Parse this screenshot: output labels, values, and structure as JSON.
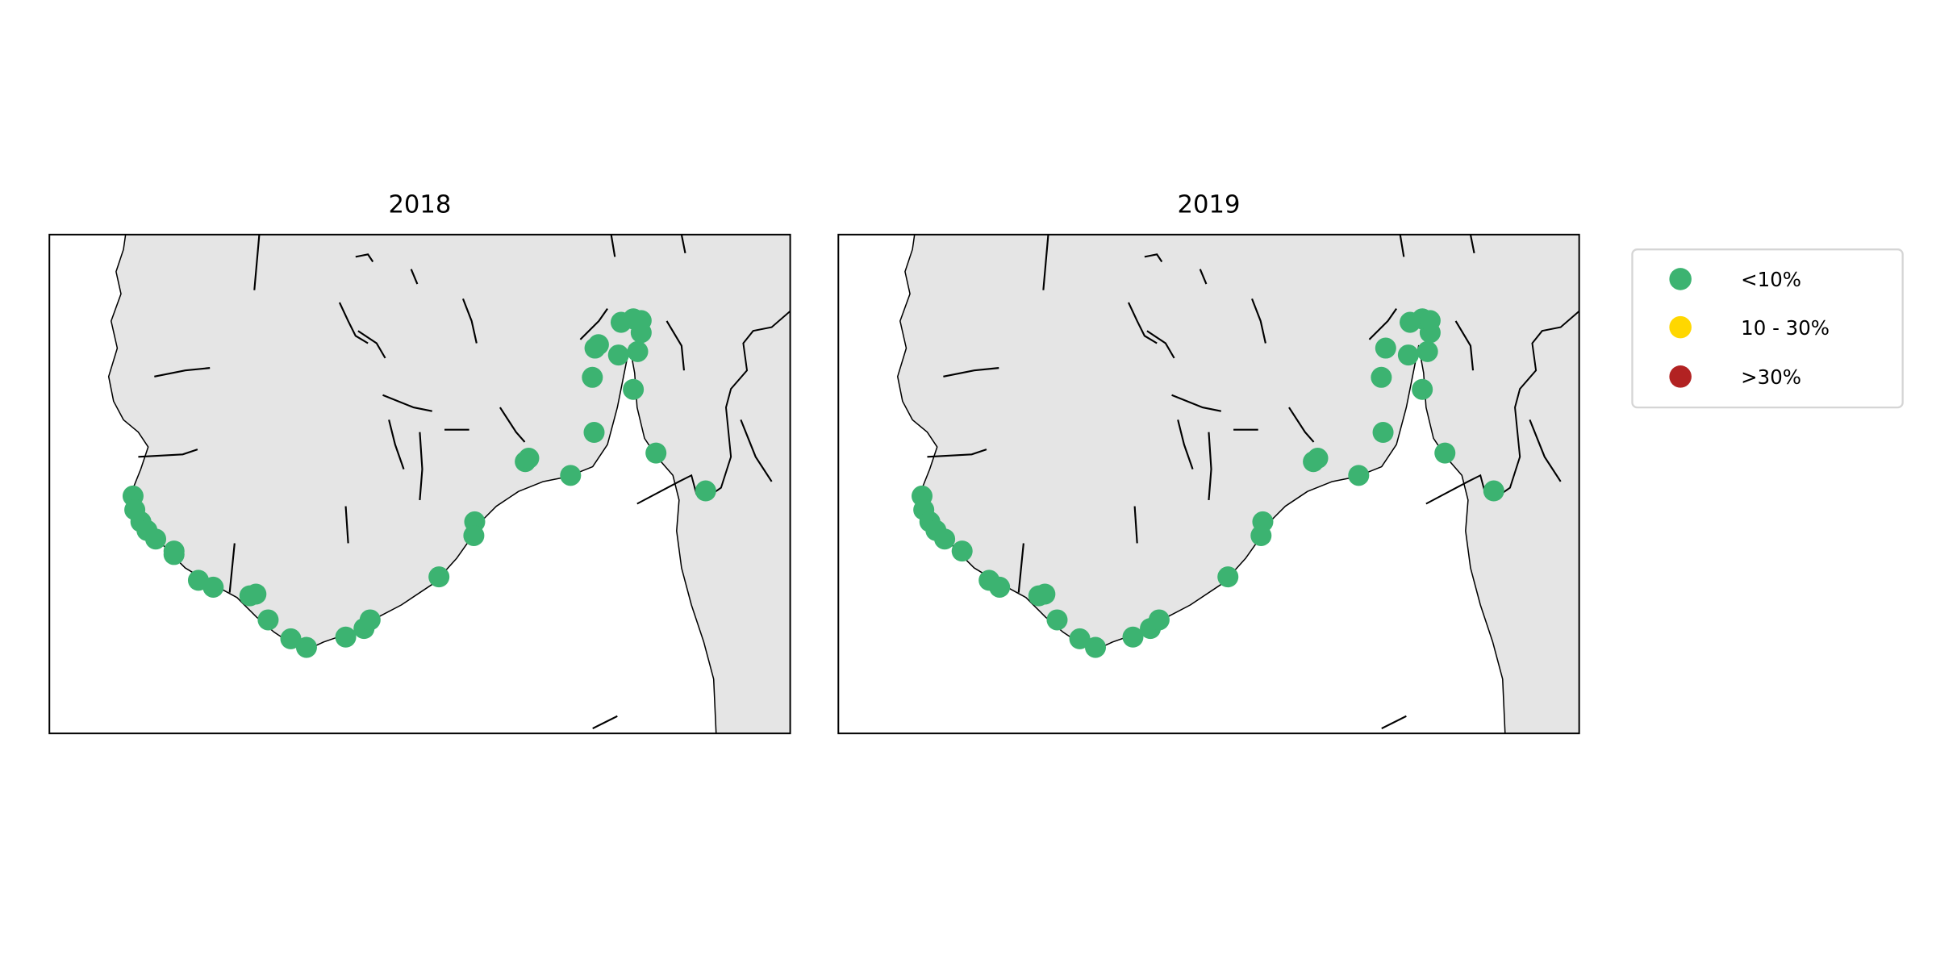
{
  "chart_data": [
    {
      "type": "scatter",
      "title": "2018",
      "map_extent": {
        "lon": [
          4.1,
          12.6
        ],
        "lat": [
          57.5,
          60.4
        ]
      },
      "land_color": "#e5e5e5",
      "series": [
        {
          "category": "<10%",
          "color": "#3cb371",
          "points": [
            [
              5.06,
              58.88
            ],
            [
              5.08,
              58.8
            ],
            [
              5.15,
              58.73
            ],
            [
              5.22,
              58.68
            ],
            [
              5.32,
              58.63
            ],
            [
              5.53,
              58.56
            ],
            [
              5.53,
              58.54
            ],
            [
              5.81,
              58.39
            ],
            [
              5.98,
              58.35
            ],
            [
              6.4,
              58.3
            ],
            [
              6.47,
              58.31
            ],
            [
              6.61,
              58.16
            ],
            [
              6.87,
              58.05
            ],
            [
              7.05,
              58.0
            ],
            [
              7.5,
              58.06
            ],
            [
              7.71,
              58.11
            ],
            [
              7.78,
              58.16
            ],
            [
              8.57,
              58.41
            ],
            [
              8.98,
              58.73
            ],
            [
              8.97,
              58.65
            ],
            [
              9.56,
              59.08
            ],
            [
              9.6,
              59.1
            ],
            [
              10.08,
              59.0
            ],
            [
              10.35,
              59.25
            ],
            [
              10.33,
              59.57
            ],
            [
              10.36,
              59.74
            ],
            [
              10.4,
              59.76
            ],
            [
              10.63,
              59.7
            ],
            [
              10.85,
              59.72
            ],
            [
              10.89,
              59.83
            ],
            [
              10.66,
              59.89
            ],
            [
              10.8,
              59.91
            ],
            [
              10.89,
              59.9
            ],
            [
              10.8,
              59.5
            ],
            [
              11.06,
              59.13
            ],
            [
              11.63,
              58.91
            ]
          ]
        }
      ]
    },
    {
      "type": "scatter",
      "title": "2019",
      "map_extent": {
        "lon": [
          4.1,
          12.6
        ],
        "lat": [
          57.5,
          60.4
        ]
      },
      "land_color": "#e5e5e5",
      "series": [
        {
          "category": "<10%",
          "color": "#3cb371",
          "points": [
            [
              5.06,
              58.88
            ],
            [
              5.08,
              58.8
            ],
            [
              5.15,
              58.73
            ],
            [
              5.22,
              58.68
            ],
            [
              5.32,
              58.63
            ],
            [
              5.52,
              58.56
            ],
            [
              5.83,
              58.39
            ],
            [
              5.95,
              58.35
            ],
            [
              6.4,
              58.3
            ],
            [
              6.47,
              58.31
            ],
            [
              6.61,
              58.16
            ],
            [
              6.87,
              58.05
            ],
            [
              7.05,
              58.0
            ],
            [
              7.48,
              58.06
            ],
            [
              7.68,
              58.11
            ],
            [
              7.78,
              58.16
            ],
            [
              8.57,
              58.41
            ],
            [
              8.97,
              58.73
            ],
            [
              8.95,
              58.65
            ],
            [
              9.55,
              59.08
            ],
            [
              9.6,
              59.1
            ],
            [
              10.07,
              59.0
            ],
            [
              10.35,
              59.25
            ],
            [
              10.33,
              59.57
            ],
            [
              10.38,
              59.74
            ],
            [
              10.64,
              59.7
            ],
            [
              10.86,
              59.72
            ],
            [
              10.89,
              59.83
            ],
            [
              10.66,
              59.89
            ],
            [
              10.8,
              59.91
            ],
            [
              10.89,
              59.9
            ],
            [
              10.8,
              59.5
            ],
            [
              11.06,
              59.13
            ],
            [
              11.62,
              58.91
            ]
          ]
        }
      ]
    }
  ],
  "legend": {
    "placement": "right",
    "items": [
      {
        "label": "<10%",
        "color": "#3cb371"
      },
      {
        "label": "10 - 30%",
        "color": "#ffd700"
      },
      {
        "label": ">30%",
        "color": "#b22222"
      }
    ]
  }
}
